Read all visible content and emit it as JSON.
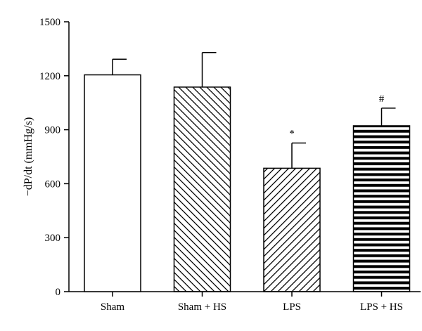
{
  "chart_data": {
    "type": "bar",
    "ylabel": "−dP/dt (mmHg/s)",
    "xlabel": "",
    "ylim": [
      0,
      1500
    ],
    "yticks": [
      "0",
      "300",
      "600",
      "900",
      "1200",
      "1500"
    ],
    "grid": false,
    "categories": [
      "Sham",
      "Sham + HS",
      "LPS",
      "LPS + HS"
    ],
    "values": [
      1205,
      1137,
      686,
      922
    ],
    "errors": [
      87,
      192,
      140,
      98
    ],
    "annotations": [
      "",
      "",
      "*",
      "#"
    ],
    "fill_patterns": [
      "none",
      "back-diagonal",
      "forward-diagonal",
      "horizontal"
    ]
  }
}
